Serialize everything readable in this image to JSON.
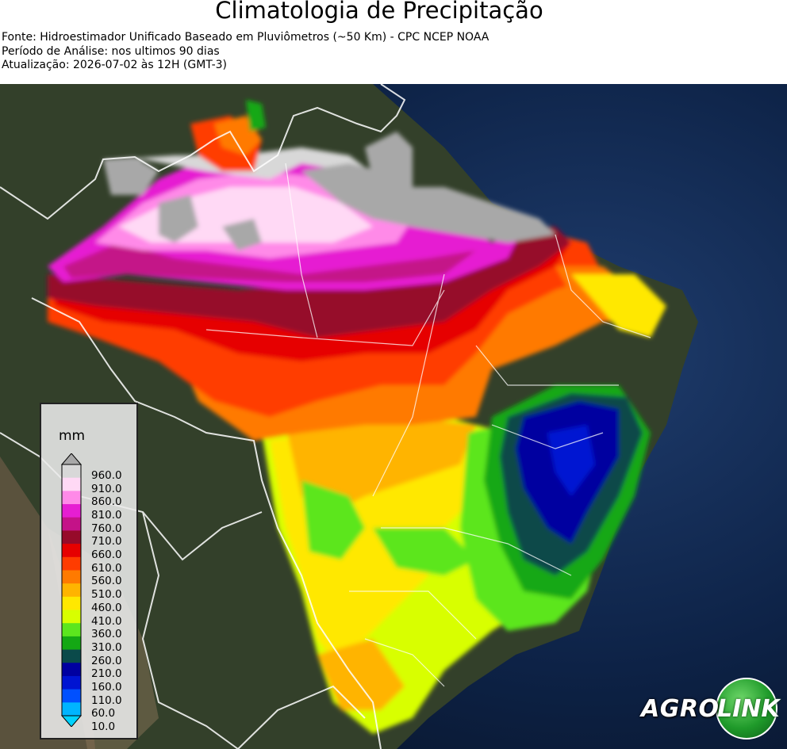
{
  "title": "Climatologia de Precipitação",
  "meta": {
    "source": "Fonte: Hidroestimador Unificado Baseado em Pluviômetros (~50 Km) - CPC NCEP NOAA",
    "period": "Período de Análise: nos ultimos 90 dias",
    "updated": "Atualização: 2026-07-02 às 12H (GMT-3)"
  },
  "legend": {
    "unit": "mm",
    "ticks": [
      "960.0",
      "910.0",
      "860.0",
      "810.0",
      "760.0",
      "710.0",
      "660.0",
      "610.0",
      "560.0",
      "510.0",
      "460.0",
      "410.0",
      "360.0",
      "310.0",
      "260.0",
      "210.0",
      "160.0",
      "110.0",
      "60.0",
      "10.0"
    ],
    "colors": [
      "#a8a8a8",
      "#d8d8d8",
      "#ffd9f5",
      "#ff8ae8",
      "#e61ed2",
      "#c41288",
      "#960a2a",
      "#e60000",
      "#ff3c00",
      "#ff7a00",
      "#ffb400",
      "#ffe800",
      "#d8ff00",
      "#5ce61e",
      "#14a814",
      "#0a4a4a",
      "#0000a0",
      "#0014d2",
      "#0050ff",
      "#00b4ff"
    ]
  },
  "logo": {
    "part1": "AGRO",
    "part2": "LINK"
  },
  "colors": {
    "ocean": "#0b1a33",
    "land": "#2e3a22",
    "border": "#ffffff"
  }
}
